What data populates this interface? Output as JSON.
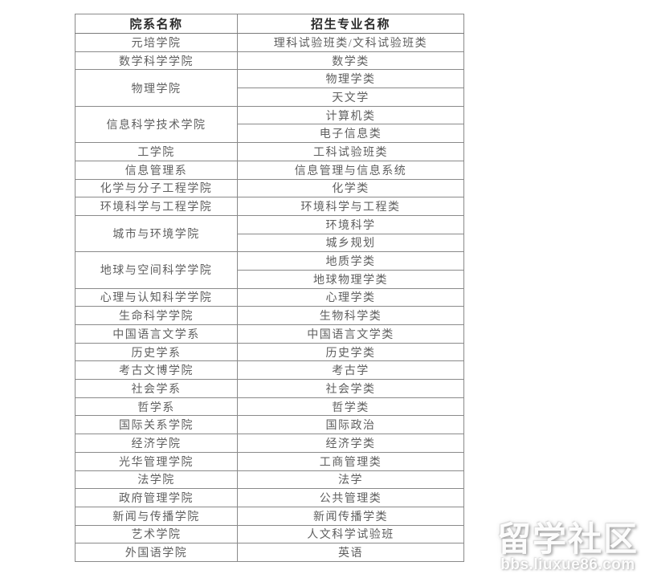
{
  "table": {
    "headers": [
      "院系名称",
      "招生专业名称"
    ],
    "rows": [
      {
        "department": "元培学院",
        "majors": [
          "理科试验班类/文科试验班类"
        ]
      },
      {
        "department": "数学科学学院",
        "majors": [
          "数学类"
        ]
      },
      {
        "department": "物理学院",
        "majors": [
          "物理学类",
          "天文学"
        ]
      },
      {
        "department": "信息科学技术学院",
        "majors": [
          "计算机类",
          "电子信息类"
        ]
      },
      {
        "department": "工学院",
        "majors": [
          "工科试验班类"
        ]
      },
      {
        "department": "信息管理系",
        "majors": [
          "信息管理与信息系统"
        ]
      },
      {
        "department": "化学与分子工程学院",
        "majors": [
          "化学类"
        ]
      },
      {
        "department": "环境科学与工程学院",
        "majors": [
          "环境科学与工程类"
        ]
      },
      {
        "department": "城市与环境学院",
        "majors": [
          "环境科学",
          "城乡规划"
        ]
      },
      {
        "department": "地球与空间科学学院",
        "majors": [
          "地质学类",
          "地球物理学类"
        ]
      },
      {
        "department": "心理与认知科学学院",
        "majors": [
          "心理学类"
        ]
      },
      {
        "department": "生命科学学院",
        "majors": [
          "生物科学类"
        ]
      },
      {
        "department": "中国语言文学系",
        "majors": [
          "中国语言文学类"
        ]
      },
      {
        "department": "历史学系",
        "majors": [
          "历史学类"
        ]
      },
      {
        "department": "考古文博学院",
        "majors": [
          "考古学"
        ]
      },
      {
        "department": "社会学系",
        "majors": [
          "社会学类"
        ]
      },
      {
        "department": "哲学系",
        "majors": [
          "哲学类"
        ]
      },
      {
        "department": "国际关系学院",
        "majors": [
          "国际政治"
        ]
      },
      {
        "department": "经济学院",
        "majors": [
          "经济学类"
        ]
      },
      {
        "department": "光华管理学院",
        "majors": [
          "工商管理类"
        ]
      },
      {
        "department": "法学院",
        "majors": [
          "法学"
        ]
      },
      {
        "department": "政府管理学院",
        "majors": [
          "公共管理类"
        ]
      },
      {
        "department": "新闻与传播学院",
        "majors": [
          "新闻传播学类"
        ]
      },
      {
        "department": "艺术学院",
        "majors": [
          "人文科学试验班"
        ]
      },
      {
        "department": "外国语学院",
        "majors": [
          "英语"
        ]
      }
    ]
  },
  "watermark": {
    "title": "留学社区",
    "url": "bbs.liuxue86.com"
  },
  "colors": {
    "background": "#ffffff",
    "border": "#8a8a8a",
    "header_text": "#2b2b2b",
    "body_text": "#5f5f5f"
  }
}
